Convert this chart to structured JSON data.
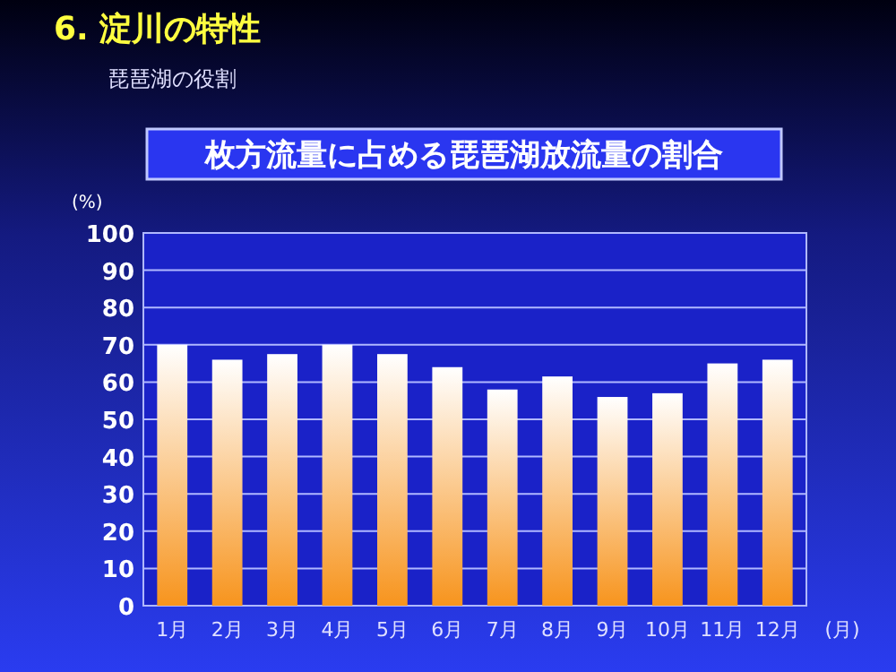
{
  "chart_data": {
    "type": "bar",
    "title": "枚方流量に占める琵琶湖放流量の割合",
    "subtitle": "琵琶湖の役割",
    "annotations": [
      "6.  淀川の特性"
    ],
    "ylabel": "(%)",
    "xlabel": "(月)",
    "categories": [
      "1月",
      "2月",
      "3月",
      "4月",
      "5月",
      "6月",
      "7月",
      "8月",
      "9月",
      "10月",
      "11月",
      "12月"
    ],
    "values": [
      70,
      66,
      67.5,
      70,
      67.5,
      64,
      58,
      61.5,
      56,
      57,
      65,
      66
    ],
    "color": "#f7941d",
    "ylim": [
      0,
      100
    ],
    "yticks": [
      0,
      10,
      20,
      30,
      40,
      50,
      60,
      70,
      80,
      90,
      100
    ],
    "grid": "y"
  }
}
